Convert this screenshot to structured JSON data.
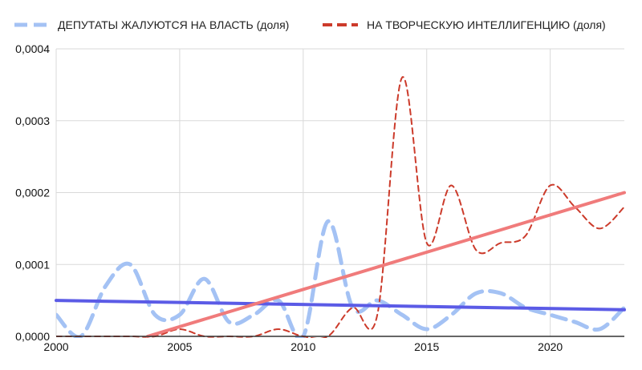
{
  "chart_data": {
    "type": "line",
    "title": "",
    "xlabel": "",
    "ylabel": "",
    "xlim": [
      2000,
      2023
    ],
    "ylim": [
      0,
      0.0004
    ],
    "grid": true,
    "legend_position": "top",
    "x_ticks": [
      2000,
      2005,
      2010,
      2015,
      2020
    ],
    "x_tick_labels": [
      "2000",
      "2005",
      "2010",
      "2015",
      "2020"
    ],
    "y_ticks": [
      0,
      0.0001,
      0.0002,
      0.0003,
      0.0004
    ],
    "y_tick_labels": [
      "0,0000",
      "0,0001",
      "0,0002",
      "0,0003",
      "0,0004"
    ],
    "series": [
      {
        "name": "ДЕПУТАТЫ ЖАЛУЮТСЯ НА ВЛАСТЬ (доля)",
        "color": "#a4c2f4",
        "style": "dashed-thick",
        "x": [
          2000,
          2001,
          2002,
          2003,
          2004,
          2005,
          2006,
          2007,
          2008,
          2009,
          2010,
          2011,
          2012,
          2013,
          2014,
          2015,
          2016,
          2017,
          2018,
          2019,
          2020,
          2021,
          2022,
          2023
        ],
        "y": [
          3e-05,
          0.0,
          7e-05,
          0.0001,
          3e-05,
          3e-05,
          8e-05,
          2e-05,
          3e-05,
          5e-05,
          0.0,
          0.00016,
          4e-05,
          5e-05,
          3e-05,
          1e-05,
          3e-05,
          6e-05,
          6e-05,
          4e-05,
          3e-05,
          2e-05,
          1e-05,
          4e-05
        ]
      },
      {
        "name": "НА ТВОРЧЕСКУЮ ИНТЕЛЛИГЕНЦИЮ (доля)",
        "color": "#cc3b2b",
        "style": "dashed-thin",
        "x": [
          2000,
          2001,
          2002,
          2003,
          2004,
          2005,
          2006,
          2007,
          2008,
          2009,
          2010,
          2011,
          2012,
          2013,
          2014,
          2015,
          2016,
          2017,
          2018,
          2019,
          2020,
          2021,
          2022,
          2023
        ],
        "y": [
          0.0,
          0.0,
          0.0,
          0.0,
          0.0,
          1e-05,
          0.0,
          0.0,
          0.0,
          1e-05,
          0.0,
          0.0,
          4e-05,
          3e-05,
          0.00036,
          0.00013,
          0.00021,
          0.00012,
          0.00013,
          0.00014,
          0.00021,
          0.00018,
          0.00015,
          0.00018
        ]
      }
    ],
    "trendlines": [
      {
        "color": "#5b5be6",
        "start": [
          2000,
          5e-05
        ],
        "end": [
          2023,
          3.7e-05
        ]
      },
      {
        "color": "#f07b7b",
        "start": [
          2003.7,
          0.0
        ],
        "end": [
          2023,
          0.0002
        ]
      }
    ]
  }
}
